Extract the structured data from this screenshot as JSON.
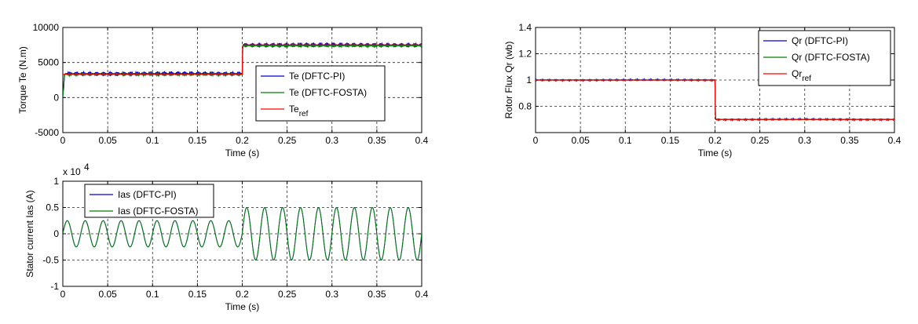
{
  "chart_data": [
    {
      "id": "torque",
      "type": "line",
      "title": "",
      "xlabel": "Time (s)",
      "ylabel": "Torque Te (N.m)",
      "xlim": [
        0,
        0.4
      ],
      "ylim": [
        -5000,
        10000
      ],
      "xticks": [
        "0",
        "0.05",
        "0.1",
        "0.15",
        "0.2",
        "0.25",
        "0.3",
        "0.35",
        "0.4"
      ],
      "yticks": [
        "-5000",
        "0",
        "5000",
        "10000"
      ],
      "grid": true,
      "legend_position": "bottom-right",
      "x": [
        0,
        0.002,
        0.2,
        0.2005,
        0.4
      ],
      "series": [
        {
          "name": "Te (DFTC-PI)",
          "color": "#0000cc",
          "values": [
            0,
            3400,
            3400,
            7500,
            7500
          ],
          "ripple": 350
        },
        {
          "name": "Te (DFTC-FOSTA)",
          "color": "#008000",
          "values": [
            0,
            3300,
            3300,
            7400,
            7400
          ],
          "ripple": 200
        },
        {
          "name": "Te",
          "name_sub": "ref",
          "color": "#ff0000",
          "values": [
            3300,
            3300,
            3300,
            7500,
            7500
          ],
          "ripple": 0
        }
      ]
    },
    {
      "id": "flux",
      "type": "line",
      "title": "",
      "xlabel": "Time (s)",
      "ylabel": "Rotor Flux Qr (wb)",
      "xlim": [
        0,
        0.4
      ],
      "ylim": [
        0.6,
        1.4
      ],
      "xticks": [
        "0",
        "0.05",
        "0.1",
        "0.15",
        "0.2",
        "0.25",
        "0.3",
        "0.35",
        "0.4"
      ],
      "yticks": [
        "0.8",
        "1",
        "1.2",
        "1.4"
      ],
      "grid": true,
      "legend_position": "top-right",
      "x": [
        0,
        0.2,
        0.2005,
        0.4
      ],
      "series": [
        {
          "name": "Qr (DFTC-PI)",
          "color": "#0000cc",
          "values": [
            1.0,
            1.0,
            0.7,
            0.7
          ],
          "ripple": 0.006
        },
        {
          "name": "Qr (DFTC-FOSTA)",
          "color": "#008000",
          "values": [
            1.0,
            1.0,
            0.7,
            0.7
          ],
          "ripple": 0.003
        },
        {
          "name": "Qr",
          "name_sub": "ref",
          "color": "#ff0000",
          "values": [
            1.0,
            1.0,
            0.7,
            0.7
          ],
          "ripple": 0
        }
      ]
    },
    {
      "id": "current",
      "type": "line",
      "title": "",
      "xlabel": "Time (s)",
      "ylabel": "Stator current Ias (A)",
      "xlim": [
        0,
        0.4
      ],
      "ylim": [
        -1,
        1
      ],
      "yscale_label": "x 10",
      "yscale_exp": "4",
      "xticks": [
        "0",
        "0.05",
        "0.1",
        "0.15",
        "0.2",
        "0.25",
        "0.3",
        "0.35",
        "0.4"
      ],
      "yticks": [
        "-1",
        "-0.5",
        "0",
        "0.5",
        "1"
      ],
      "grid": true,
      "legend_position": "top-left",
      "frequency_hz": 50,
      "amplitude_segments": [
        {
          "t_start": 0,
          "t_end": 0.2,
          "amplitude": 0.25
        },
        {
          "t_start": 0.2,
          "t_end": 0.4,
          "amplitude": 0.5
        }
      ],
      "series": [
        {
          "name": "Ias (DFTC-PI)",
          "color": "#0000cc"
        },
        {
          "name": "Ias (DFTC-FOSTA)",
          "color": "#008000"
        }
      ]
    }
  ]
}
